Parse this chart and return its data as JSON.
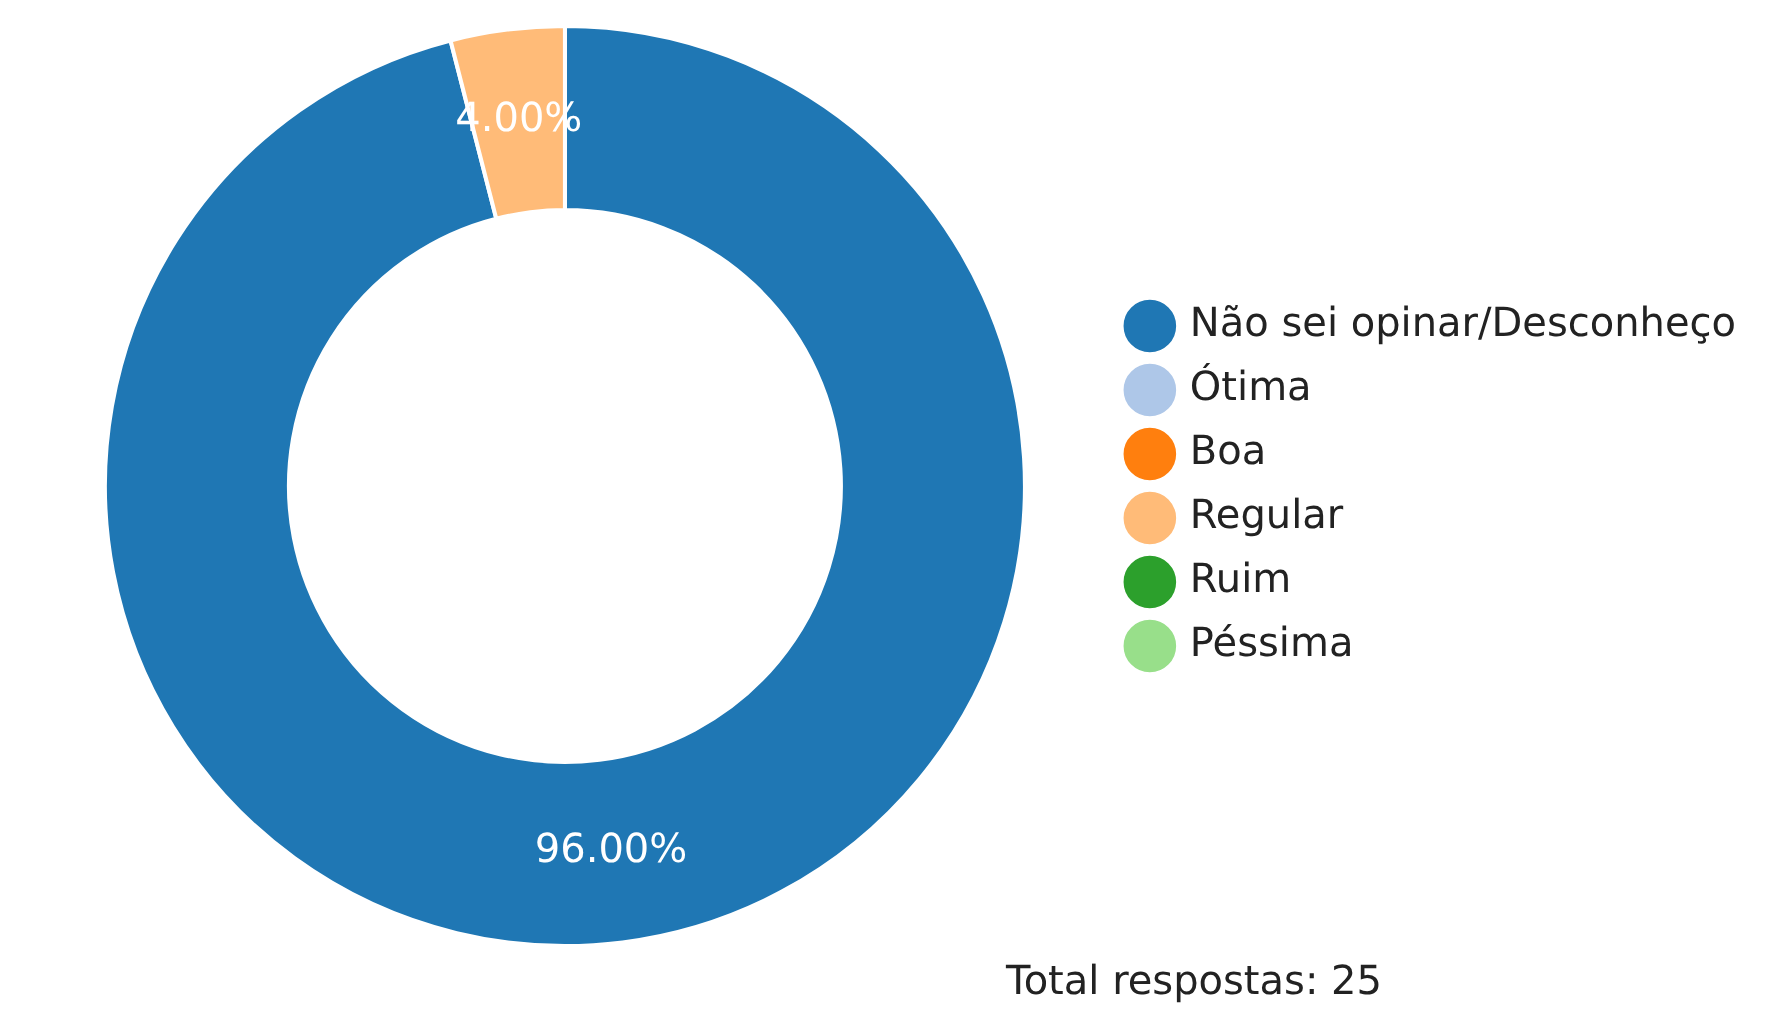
{
  "chart_data": {
    "type": "donut",
    "categories": [
      "Não sei opinar/Desconheço",
      "Ótima",
      "Boa",
      "Regular",
      "Ruim",
      "Péssima"
    ],
    "values": [
      96,
      0,
      0,
      4,
      0,
      0
    ],
    "colors": [
      "#1f77b4",
      "#aec7e8",
      "#ff7f0e",
      "#ffbb78",
      "#2ca02c",
      "#98df8a"
    ],
    "value_labels": [
      "96.00%",
      null,
      null,
      "4.00%",
      null,
      null
    ],
    "legend": "right",
    "annotations": [
      "Total respostas: 25"
    ]
  }
}
